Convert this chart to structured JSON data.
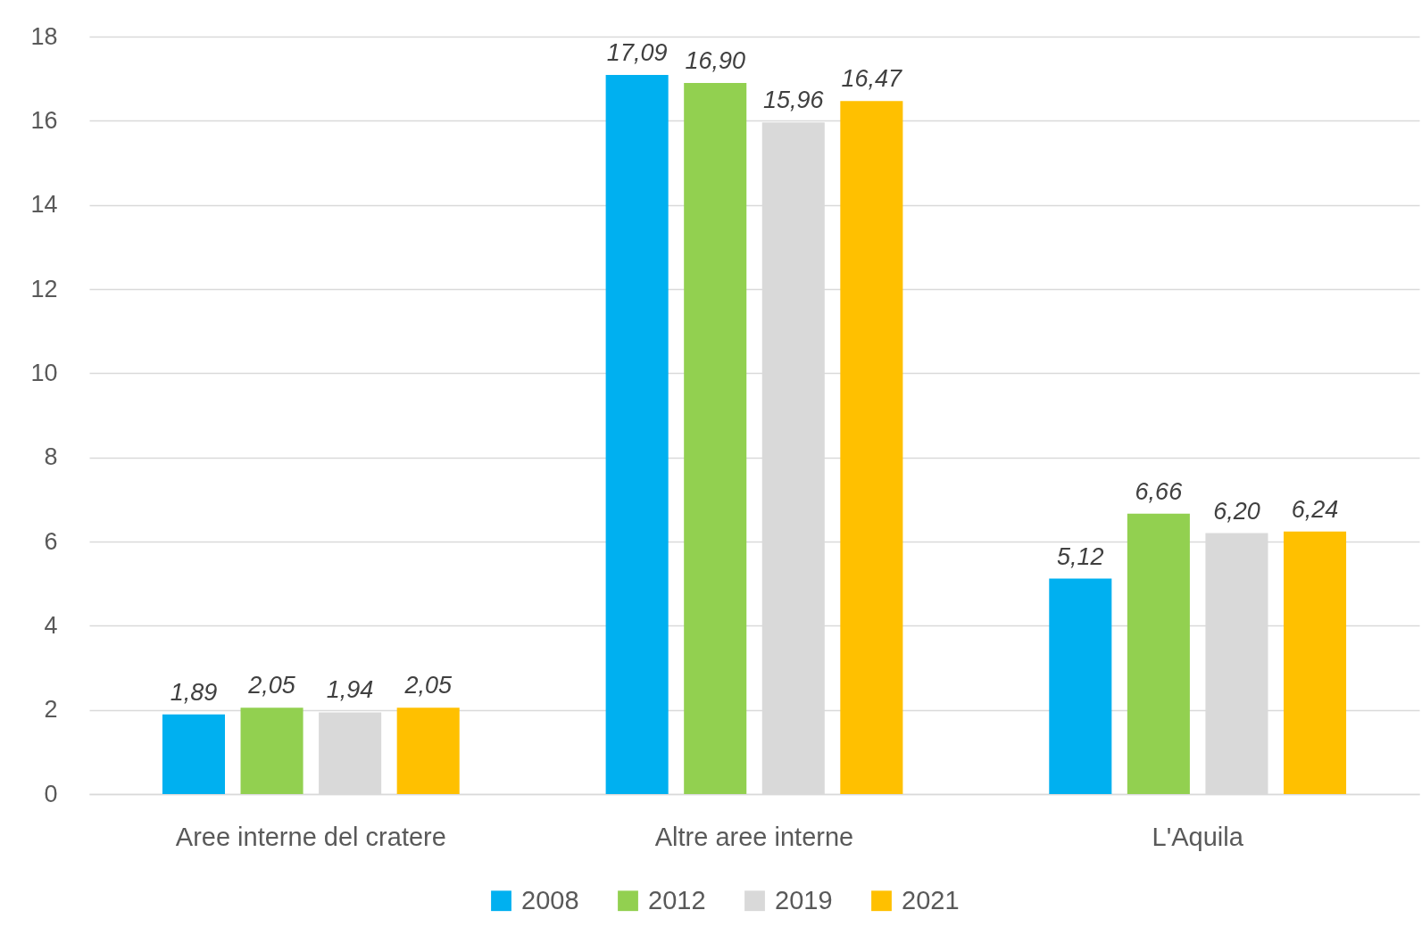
{
  "chart_data": {
    "type": "bar",
    "categories": [
      "Aree interne del cratere",
      "Altre aree interne",
      "L'Aquila"
    ],
    "series": [
      {
        "name": "2008",
        "color": "#00b0f0",
        "values": [
          1.89,
          17.09,
          5.12
        ],
        "value_labels": [
          "1,89",
          "17,09",
          "5,12"
        ]
      },
      {
        "name": "2012",
        "color": "#92d050",
        "values": [
          2.05,
          16.9,
          6.66
        ],
        "value_labels": [
          "2,05",
          "16,90",
          "6,66"
        ]
      },
      {
        "name": "2019",
        "color": "#d9d9d9",
        "values": [
          1.94,
          15.96,
          6.2
        ],
        "value_labels": [
          "1,94",
          "15,96",
          "6,20"
        ]
      },
      {
        "name": "2021",
        "color": "#ffc000",
        "values": [
          2.05,
          16.47,
          6.24
        ],
        "value_labels": [
          "2,05",
          "16,47",
          "6,24"
        ]
      }
    ],
    "ylim": [
      0,
      18
    ],
    "yticks": [
      0,
      2,
      4,
      6,
      8,
      10,
      12,
      14,
      16,
      18
    ],
    "grid": "y",
    "legend": "bottom"
  }
}
